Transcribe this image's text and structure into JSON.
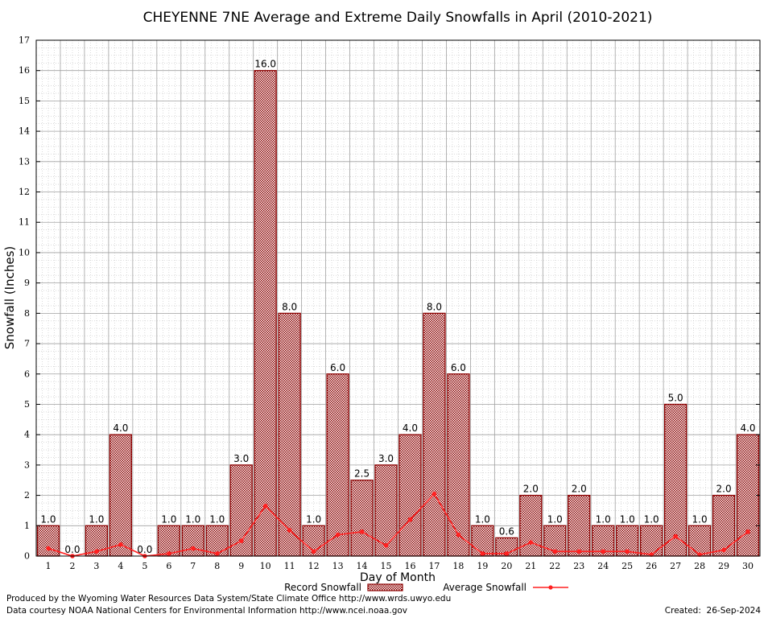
{
  "chart_data": {
    "type": "bar",
    "title": "CHEYENNE 7NE Average and Extreme Daily Snowfalls in April (2010-2021)",
    "xlabel": "Day of Month",
    "ylabel": "Snowfall (Inches)",
    "ylim": [
      0,
      17
    ],
    "grid": true,
    "legend_position": "bottom-center",
    "categories": [
      "1",
      "2",
      "3",
      "4",
      "5",
      "6",
      "7",
      "8",
      "9",
      "10",
      "11",
      "12",
      "13",
      "14",
      "15",
      "16",
      "17",
      "18",
      "19",
      "20",
      "21",
      "22",
      "23",
      "24",
      "25",
      "26",
      "27",
      "28",
      "29",
      "30"
    ],
    "series": [
      {
        "name": "Record Snowfall",
        "type": "bar",
        "values": [
          1.0,
          0.0,
          1.0,
          4.0,
          0.0,
          1.0,
          1.0,
          1.0,
          3.0,
          16.0,
          8.0,
          1.0,
          6.0,
          2.5,
          3.0,
          4.0,
          8.0,
          6.0,
          1.0,
          0.6,
          2.0,
          1.0,
          2.0,
          1.0,
          1.0,
          1.0,
          5.0,
          1.0,
          2.0,
          4.0
        ],
        "labels": [
          "1.0",
          "0.0",
          "1.0",
          "4.0",
          "0.0",
          "1.0",
          "1.0",
          "1.0",
          "3.0",
          "16.0",
          "8.0",
          "1.0",
          "6.0",
          "2.5",
          "3.0",
          "4.0",
          "8.0",
          "6.0",
          "1.0",
          "0.6",
          "2.0",
          "1.0",
          "2.0",
          "1.0",
          "1.0",
          "1.0",
          "5.0",
          "1.0",
          "2.0",
          "4.0"
        ]
      },
      {
        "name": "Average Snowfall",
        "type": "line",
        "values": [
          0.25,
          0.0,
          0.15,
          0.38,
          0.0,
          0.08,
          0.25,
          0.08,
          0.5,
          1.65,
          0.85,
          0.15,
          0.7,
          0.8,
          0.35,
          1.2,
          2.05,
          0.7,
          0.08,
          0.08,
          0.45,
          0.15,
          0.15,
          0.15,
          0.15,
          0.05,
          0.65,
          0.05,
          0.2,
          0.8
        ]
      }
    ],
    "yticks": [
      "0",
      "1",
      "2",
      "3",
      "4",
      "5",
      "6",
      "7",
      "8",
      "9",
      "10",
      "11",
      "12",
      "13",
      "14",
      "15",
      "16",
      "17"
    ],
    "colors": {
      "bar_edge": "#8b0000",
      "bar_fill": "#d9a6a6",
      "line": "#ff2020",
      "grid": "#a0a0a0"
    }
  },
  "footer": {
    "line1": "Produced by the Wyoming Water Resources Data System/State Climate Office http://www.wrds.uwyo.edu",
    "line2": "Data courtesy NOAA National Centers for Environmental Information http://www.ncei.noaa.gov",
    "created": "Created:  26-Sep-2024"
  }
}
